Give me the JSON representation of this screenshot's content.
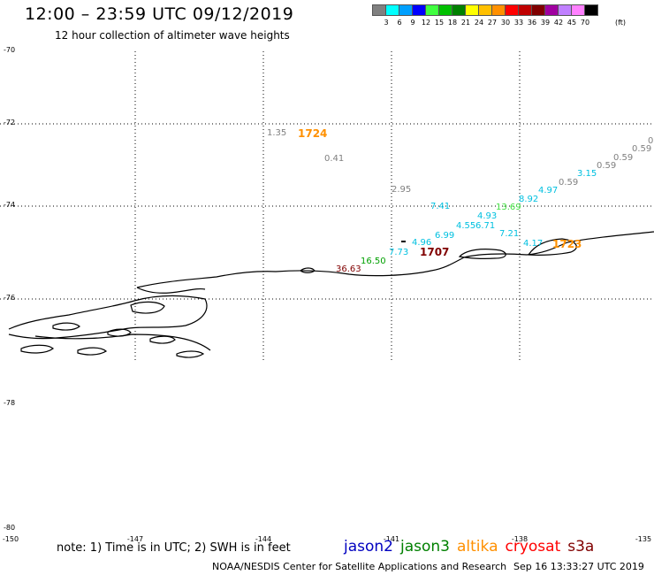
{
  "header": {
    "title": "12:00 – 23:59 UTC 09/12/2019",
    "subtitle": "12 hour collection of altimeter wave heights"
  },
  "legend": {
    "colors": [
      "#808080",
      "#00ffff",
      "#00a0ff",
      "#0000ff",
      "#40ff40",
      "#00c000",
      "#008000",
      "#ffff00",
      "#ffc000",
      "#ff9000",
      "#ff0000",
      "#c00000",
      "#800000",
      "#a000a0",
      "#c080ff",
      "#ff80ff",
      "#000000"
    ],
    "labels": [
      "3",
      "6",
      "9",
      "12",
      "15",
      "18",
      "21",
      "24",
      "27",
      "30",
      "33",
      "36",
      "39",
      "42",
      "45",
      "70"
    ],
    "unit": "(ft)"
  },
  "axes": {
    "latitudes": [
      "-70",
      "-72",
      "-74",
      "-76",
      "-78",
      "-80"
    ],
    "longitudes": [
      "-150",
      "-147",
      "-144",
      "-141",
      "-138",
      "-135"
    ]
  },
  "observations": [
    {
      "text": "1.35",
      "color": "#808080"
    },
    {
      "text": "1724",
      "color": "#ff9000"
    },
    {
      "text": "0.41",
      "color": "#808080"
    },
    {
      "text": "2.95",
      "color": "#808080"
    },
    {
      "text": "7.41",
      "color": "#00c0e0"
    },
    {
      "text": "13.69",
      "color": "#40e040"
    },
    {
      "text": "4.93",
      "color": "#00c0e0"
    },
    {
      "text": "4.55",
      "color": "#00c0e0"
    },
    {
      "text": "6.71",
      "color": "#00c0e0"
    },
    {
      "text": "6.99",
      "color": "#00c0e0"
    },
    {
      "text": "4.96",
      "color": "#00c0e0"
    },
    {
      "text": "7.73",
      "color": "#00c0e0"
    },
    {
      "text": "1707",
      "color": "#800000"
    },
    {
      "text": "16.50",
      "color": "#00a000"
    },
    {
      "text": "36.63",
      "color": "#800000"
    },
    {
      "text": "7.21",
      "color": "#00c0e0"
    },
    {
      "text": "4.17",
      "color": "#00c0e0"
    },
    {
      "text": "1723",
      "color": "#ff9000"
    },
    {
      "text": "8.92",
      "color": "#00c0e0"
    },
    {
      "text": "4.97",
      "color": "#00c0e0"
    },
    {
      "text": "3.15",
      "color": "#00c0e0"
    },
    {
      "text": "0.59",
      "color": "#808080"
    },
    {
      "text": "0.59",
      "color": "#808080"
    },
    {
      "text": "0.59",
      "color": "#808080"
    },
    {
      "text": "0.59",
      "color": "#808080"
    },
    {
      "text": "0.",
      "color": "#808080"
    }
  ],
  "note": "note: 1) Time is in UTC; 2) SWH is in feet",
  "satellites": [
    {
      "name": "jason2",
      "color": "#0000c0"
    },
    {
      "name": "jason3",
      "color": "#008000"
    },
    {
      "name": "altika",
      "color": "#ff9000"
    },
    {
      "name": "cryosat",
      "color": "#ff0000"
    },
    {
      "name": "s3a",
      "color": "#800000"
    }
  ],
  "footer": "NOAA/NESDIS Center for Satellite Applications and Research",
  "timestamp": "Sep 16 13:33:27 UTC 2019"
}
